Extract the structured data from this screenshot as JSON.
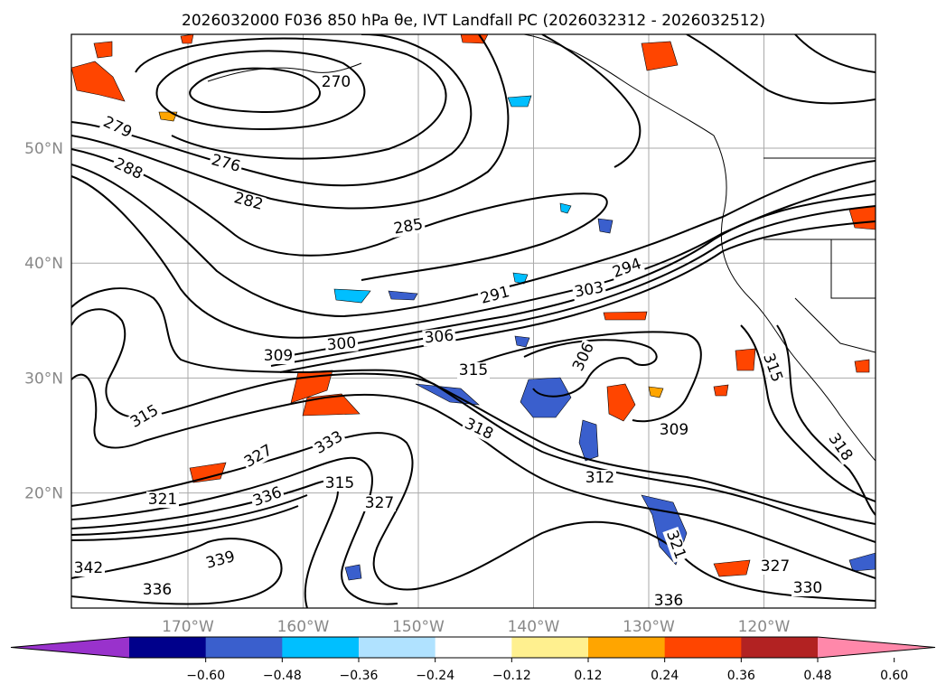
{
  "title": "2026032000 F036 850 hPa θe, IVT Landfall PC (2026032312 - 2026032512)",
  "map": {
    "lat_ticks": [
      {
        "label": "50°N",
        "lat": 50
      },
      {
        "label": "40°N",
        "lat": 40
      },
      {
        "label": "30°N",
        "lat": 30
      },
      {
        "label": "20°N",
        "lat": 20
      }
    ],
    "lon_ticks": [
      {
        "label": "170°W",
        "lon": -170
      },
      {
        "label": "160°W",
        "lon": -160
      },
      {
        "label": "150°W",
        "lon": -150
      },
      {
        "label": "140°W",
        "lon": -140
      },
      {
        "label": "130°W",
        "lon": -130
      },
      {
        "label": "120°W",
        "lon": -120
      }
    ],
    "extent": {
      "lon_min": -180,
      "lon_max": -110,
      "lat_min": 10,
      "lat_max": 60
    },
    "grid": true,
    "contour_labels": [
      "270",
      "279",
      "276",
      "288",
      "282",
      "285",
      "294",
      "291",
      "303",
      "306",
      "300",
      "309",
      "315",
      "315",
      "306",
      "318",
      "309",
      "315",
      "315",
      "333",
      "327",
      "327",
      "312",
      "321",
      "336",
      "339",
      "342",
      "336",
      "336",
      "330",
      "327",
      "321",
      "318"
    ]
  },
  "colorbar": {
    "colors": [
      "#9932cc",
      "#00008b",
      "#3a5fcd",
      "#00bfff",
      "#b0e2ff",
      "#ffffff",
      "#fff08f",
      "#ffa500",
      "#ff4500",
      "#b22222",
      "#ff88aa"
    ],
    "ticks": [
      "−0.60",
      "−0.48",
      "−0.36",
      "−0.24",
      "−0.12",
      "0.12",
      "0.24",
      "0.36",
      "0.48",
      "0.60"
    ]
  }
}
